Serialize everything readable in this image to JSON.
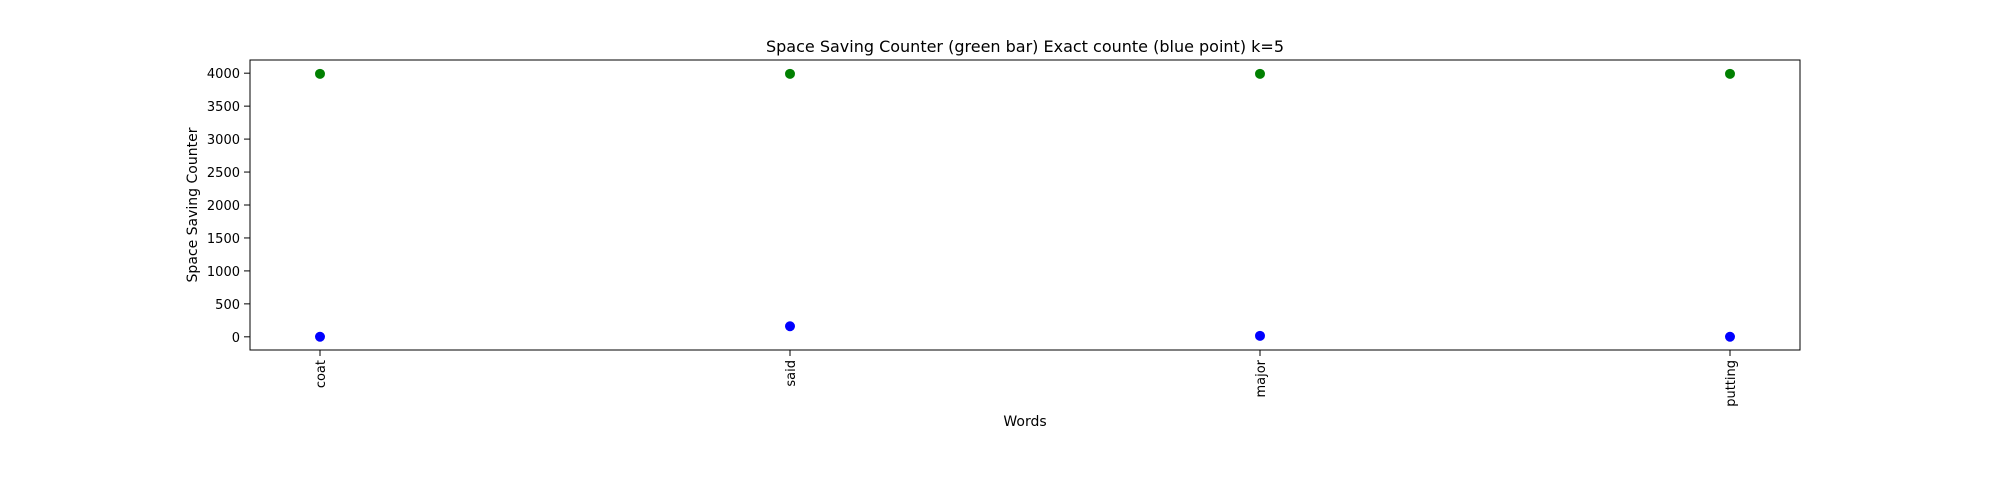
{
  "chart_data": {
    "type": "scatter",
    "title": "Space Saving Counter (green bar)  Exact counte (blue point) k=5",
    "xlabel": "Words",
    "ylabel": "Space Saving Counter",
    "categories": [
      "coat",
      "said",
      "major",
      "putting"
    ],
    "ylim": [
      -200,
      4200
    ],
    "yticks": [
      0,
      500,
      1000,
      1500,
      2000,
      2500,
      3000,
      3500,
      4000
    ],
    "grid": false,
    "series": [
      {
        "color": "#008000",
        "values": [
          3990,
          3990,
          3990,
          3990
        ]
      },
      {
        "color": "#0000ff",
        "values": [
          1,
          160,
          15,
          1
        ]
      }
    ]
  }
}
